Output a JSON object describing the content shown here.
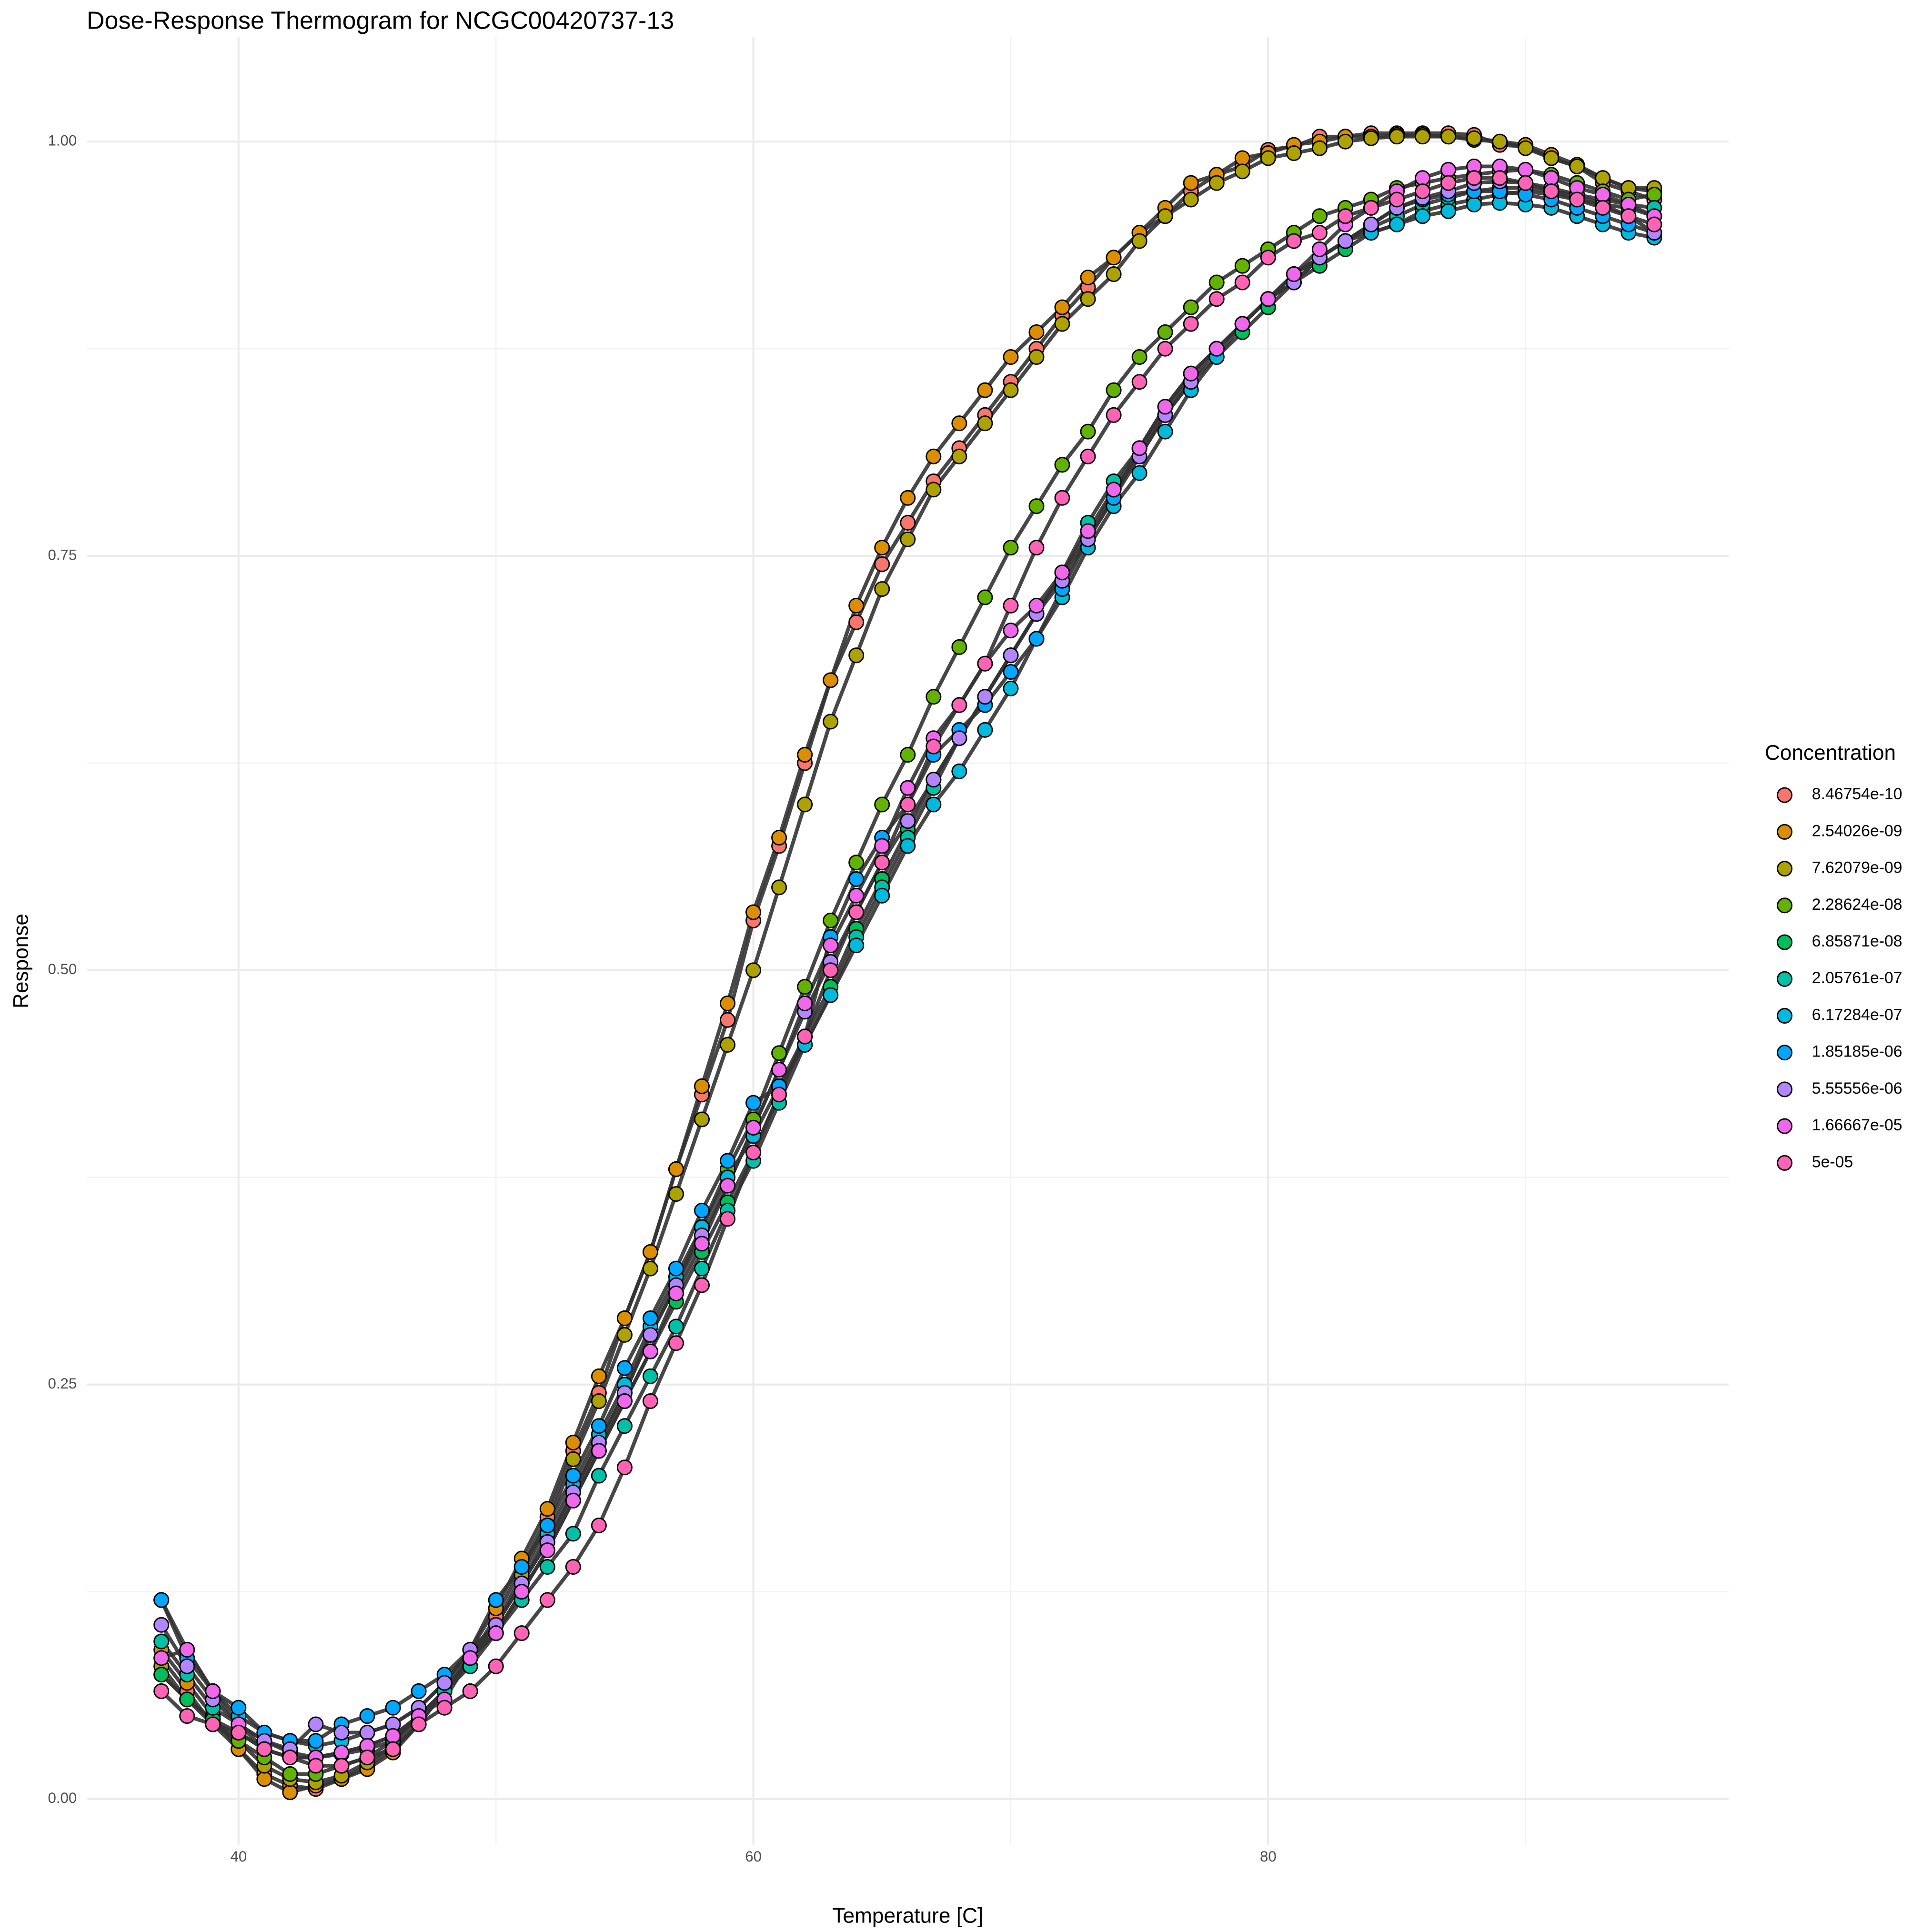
{
  "chart_data": {
    "type": "line",
    "title": "Dose-Response Thermogram for NCGC00420737-13",
    "xlabel": "Temperature [C]",
    "ylabel": "Response",
    "legend_title": "Concentration",
    "x": [
      37,
      38,
      39,
      40,
      41,
      42,
      43,
      44,
      45,
      46,
      47,
      48,
      49,
      50,
      51,
      52,
      53,
      54,
      55,
      56,
      57,
      58,
      59,
      60,
      61,
      62,
      63,
      64,
      65,
      66,
      67,
      68,
      69,
      70,
      71,
      72,
      73,
      74,
      75,
      76,
      77,
      78,
      79,
      80,
      81,
      82,
      83,
      84,
      85,
      86,
      87,
      88,
      89,
      90,
      91,
      92,
      93,
      94,
      95
    ],
    "xlim": [
      34.1,
      97.9
    ],
    "ylim": [
      -0.028,
      1.063
    ],
    "xticks": [
      40,
      60,
      80
    ],
    "yticks": [
      {
        "value": 0,
        "label": "0.00"
      },
      {
        "value": 0.25,
        "label": "0.25"
      },
      {
        "value": 0.5,
        "label": "0.50"
      },
      {
        "value": 0.75,
        "label": "0.75"
      },
      {
        "value": 1,
        "label": "1.00"
      }
    ],
    "grid": true,
    "minor_grid": true,
    "legend": "right",
    "line_color": "#333333",
    "series": [
      {
        "name": "8.46754e-10",
        "color": "#F8766D",
        "values": [
          0.085,
          0.065,
          0.045,
          0.03,
          0.015,
          0.008,
          0.006,
          0.012,
          0.02,
          0.03,
          0.045,
          0.065,
          0.085,
          0.11,
          0.14,
          0.17,
          0.21,
          0.245,
          0.29,
          0.33,
          0.38,
          0.425,
          0.47,
          0.53,
          0.575,
          0.625,
          0.675,
          0.71,
          0.745,
          0.77,
          0.795,
          0.815,
          0.835,
          0.855,
          0.875,
          0.895,
          0.912,
          0.93,
          0.945,
          0.955,
          0.97,
          0.98,
          0.985,
          0.995,
          0.997,
          1.003,
          1.003,
          1.005,
          1.005,
          1.005,
          1.005,
          1.004,
          0.998,
          0.997,
          0.99,
          0.985,
          0.975,
          0.97,
          0.965
        ]
      },
      {
        "name": "2.54026e-09",
        "color": "#DB8E00",
        "values": [
          0.09,
          0.07,
          0.05,
          0.03,
          0.012,
          0.004,
          0.008,
          0.012,
          0.018,
          0.028,
          0.045,
          0.065,
          0.09,
          0.115,
          0.145,
          0.175,
          0.215,
          0.255,
          0.29,
          0.33,
          0.38,
          0.43,
          0.48,
          0.535,
          0.58,
          0.63,
          0.675,
          0.72,
          0.755,
          0.785,
          0.81,
          0.83,
          0.85,
          0.87,
          0.885,
          0.9,
          0.918,
          0.93,
          0.945,
          0.96,
          0.975,
          0.98,
          0.99,
          0.993,
          0.998,
          1.0,
          1.003,
          1.003,
          1.004,
          1.004,
          1.003,
          1.001,
          1.0,
          0.998,
          0.992,
          0.986,
          0.978,
          0.972,
          0.97
        ]
      },
      {
        "name": "7.62079e-09",
        "color": "#AEA200",
        "values": [
          0.08,
          0.06,
          0.048,
          0.035,
          0.02,
          0.012,
          0.01,
          0.014,
          0.022,
          0.032,
          0.048,
          0.065,
          0.085,
          0.105,
          0.135,
          0.165,
          0.205,
          0.24,
          0.28,
          0.32,
          0.365,
          0.41,
          0.455,
          0.5,
          0.55,
          0.6,
          0.65,
          0.69,
          0.73,
          0.76,
          0.79,
          0.81,
          0.83,
          0.85,
          0.87,
          0.89,
          0.905,
          0.92,
          0.94,
          0.955,
          0.965,
          0.975,
          0.982,
          0.99,
          0.993,
          0.996,
          1.0,
          1.002,
          1.003,
          1.003,
          1.003,
          1.002,
          1.0,
          0.996,
          0.99,
          0.985,
          0.978,
          0.972,
          0.972
        ]
      },
      {
        "name": "2.28624e-08",
        "color": "#64B200",
        "values": [
          0.075,
          0.06,
          0.045,
          0.035,
          0.025,
          0.015,
          0.015,
          0.02,
          0.025,
          0.035,
          0.05,
          0.065,
          0.085,
          0.105,
          0.13,
          0.155,
          0.185,
          0.215,
          0.245,
          0.28,
          0.31,
          0.345,
          0.38,
          0.41,
          0.45,
          0.49,
          0.53,
          0.565,
          0.6,
          0.63,
          0.665,
          0.695,
          0.725,
          0.755,
          0.78,
          0.805,
          0.825,
          0.85,
          0.87,
          0.885,
          0.9,
          0.915,
          0.925,
          0.935,
          0.945,
          0.955,
          0.96,
          0.965,
          0.972,
          0.975,
          0.978,
          0.98,
          0.982,
          0.983,
          0.98,
          0.975,
          0.97,
          0.965,
          0.968
        ]
      },
      {
        "name": "6.85871e-08",
        "color": "#00BD5C",
        "values": [
          0.075,
          0.06,
          0.048,
          0.04,
          0.03,
          0.025,
          0.025,
          0.027,
          0.03,
          0.035,
          0.05,
          0.065,
          0.085,
          0.1,
          0.125,
          0.15,
          0.18,
          0.21,
          0.24,
          0.27,
          0.3,
          0.33,
          0.36,
          0.39,
          0.425,
          0.46,
          0.49,
          0.525,
          0.555,
          0.585,
          0.615,
          0.64,
          0.665,
          0.69,
          0.715,
          0.74,
          0.76,
          0.785,
          0.81,
          0.835,
          0.855,
          0.87,
          0.885,
          0.9,
          0.915,
          0.925,
          0.935,
          0.945,
          0.95,
          0.958,
          0.962,
          0.965,
          0.968,
          0.97,
          0.968,
          0.965,
          0.962,
          0.96,
          0.955
        ]
      },
      {
        "name": "2.05761e-07",
        "color": "#00C1A7",
        "values": [
          0.095,
          0.075,
          0.055,
          0.045,
          0.035,
          0.028,
          0.025,
          0.028,
          0.032,
          0.038,
          0.05,
          0.065,
          0.08,
          0.1,
          0.12,
          0.14,
          0.16,
          0.195,
          0.225,
          0.255,
          0.285,
          0.32,
          0.355,
          0.385,
          0.42,
          0.455,
          0.485,
          0.52,
          0.55,
          0.58,
          0.61,
          0.64,
          0.665,
          0.69,
          0.715,
          0.74,
          0.77,
          0.795,
          0.815,
          0.835,
          0.86,
          0.875,
          0.89,
          0.905,
          0.92,
          0.93,
          0.94,
          0.948,
          0.955,
          0.962,
          0.966,
          0.97,
          0.972,
          0.972,
          0.97,
          0.968,
          0.965,
          0.962,
          0.96
        ]
      },
      {
        "name": "6.17284e-07",
        "color": "#00BADE",
        "values": [
          0.12,
          0.09,
          0.065,
          0.05,
          0.04,
          0.035,
          0.032,
          0.035,
          0.04,
          0.045,
          0.055,
          0.07,
          0.09,
          0.105,
          0.13,
          0.16,
          0.19,
          0.22,
          0.25,
          0.285,
          0.315,
          0.345,
          0.375,
          0.4,
          0.43,
          0.455,
          0.485,
          0.515,
          0.545,
          0.575,
          0.6,
          0.62,
          0.645,
          0.67,
          0.7,
          0.725,
          0.755,
          0.78,
          0.8,
          0.825,
          0.85,
          0.87,
          0.89,
          0.905,
          0.92,
          0.93,
          0.94,
          0.945,
          0.95,
          0.955,
          0.958,
          0.962,
          0.963,
          0.962,
          0.96,
          0.955,
          0.95,
          0.945,
          0.942
        ]
      },
      {
        "name": "1.85185e-06",
        "color": "#00A6FF",
        "values": [
          0.12,
          0.085,
          0.065,
          0.055,
          0.04,
          0.035,
          0.035,
          0.045,
          0.05,
          0.055,
          0.065,
          0.075,
          0.09,
          0.12,
          0.14,
          0.165,
          0.195,
          0.225,
          0.26,
          0.29,
          0.32,
          0.355,
          0.385,
          0.42,
          0.43,
          0.46,
          0.52,
          0.555,
          0.58,
          0.6,
          0.63,
          0.645,
          0.66,
          0.68,
          0.7,
          0.73,
          0.76,
          0.785,
          0.815,
          0.84,
          0.86,
          0.875,
          0.89,
          0.905,
          0.915,
          0.93,
          0.94,
          0.95,
          0.96,
          0.965,
          0.968,
          0.97,
          0.97,
          0.968,
          0.965,
          0.96,
          0.955,
          0.95,
          0.945
        ]
      },
      {
        "name": "5.55556e-06",
        "color": "#B385FF",
        "values": [
          0.105,
          0.08,
          0.06,
          0.045,
          0.035,
          0.03,
          0.045,
          0.04,
          0.04,
          0.045,
          0.055,
          0.07,
          0.09,
          0.105,
          0.13,
          0.155,
          0.185,
          0.215,
          0.245,
          0.28,
          0.31,
          0.34,
          0.37,
          0.405,
          0.44,
          0.475,
          0.505,
          0.535,
          0.565,
          0.59,
          0.615,
          0.64,
          0.665,
          0.69,
          0.715,
          0.735,
          0.76,
          0.79,
          0.81,
          0.835,
          0.855,
          0.875,
          0.89,
          0.905,
          0.915,
          0.93,
          0.94,
          0.95,
          0.96,
          0.966,
          0.97,
          0.975,
          0.976,
          0.975,
          0.972,
          0.968,
          0.962,
          0.955,
          0.945
        ]
      },
      {
        "name": "1.66667e-05",
        "color": "#EF67EB",
        "values": [
          0.085,
          0.09,
          0.065,
          0.045,
          0.03,
          0.025,
          0.025,
          0.028,
          0.032,
          0.038,
          0.05,
          0.06,
          0.085,
          0.1,
          0.125,
          0.15,
          0.18,
          0.21,
          0.24,
          0.27,
          0.305,
          0.335,
          0.37,
          0.405,
          0.44,
          0.48,
          0.515,
          0.545,
          0.575,
          0.61,
          0.64,
          0.66,
          0.685,
          0.705,
          0.72,
          0.74,
          0.765,
          0.79,
          0.815,
          0.84,
          0.86,
          0.875,
          0.89,
          0.905,
          0.92,
          0.935,
          0.95,
          0.96,
          0.97,
          0.978,
          0.983,
          0.985,
          0.985,
          0.983,
          0.978,
          0.972,
          0.968,
          0.962,
          0.955
        ]
      },
      {
        "name": "5e-05",
        "color": "#FF63B6",
        "values": [
          0.065,
          0.05,
          0.045,
          0.04,
          0.03,
          0.025,
          0.02,
          0.02,
          0.025,
          0.03,
          0.045,
          0.055,
          0.065,
          0.08,
          0.1,
          0.12,
          0.14,
          0.165,
          0.2,
          0.24,
          0.275,
          0.31,
          0.35,
          0.39,
          0.425,
          0.46,
          0.5,
          0.535,
          0.565,
          0.6,
          0.635,
          0.66,
          0.685,
          0.72,
          0.755,
          0.785,
          0.81,
          0.835,
          0.855,
          0.875,
          0.89,
          0.905,
          0.915,
          0.93,
          0.94,
          0.945,
          0.955,
          0.96,
          0.965,
          0.97,
          0.975,
          0.978,
          0.978,
          0.975,
          0.97,
          0.965,
          0.96,
          0.955,
          0.95
        ]
      }
    ]
  }
}
